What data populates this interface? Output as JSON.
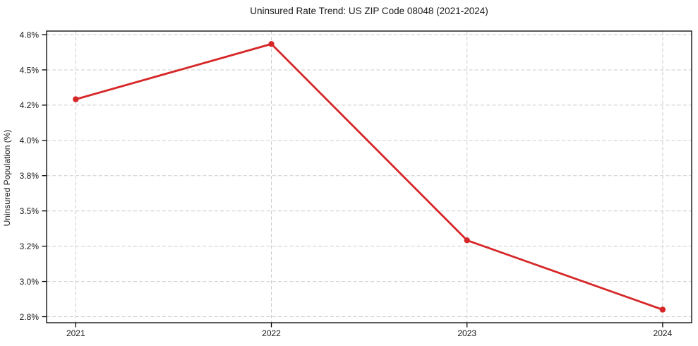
{
  "chart_data": {
    "type": "line",
    "title": "Uninsured Rate Trend: US ZIP Code 08048 (2021-2024)",
    "xlabel": "",
    "ylabel": "Uninsured Population (%)",
    "categories": [
      "2021",
      "2022",
      "2023",
      "2024"
    ],
    "series": [
      {
        "name": "Uninsured Population (%)",
        "values": [
          4.25,
          4.72,
          3.25,
          2.84
        ],
        "color": "#d62728",
        "marker": "circle"
      }
    ],
    "y_tick_labels": [
      "4.8%",
      "4.5%",
      "4.2%",
      "4.0%",
      "3.8%",
      "3.5%",
      "3.2%",
      "3.0%",
      "2.8%"
    ],
    "y_tick_values": [
      4.8,
      4.5,
      4.2,
      4.0,
      3.8,
      3.5,
      3.2,
      3.0,
      2.8
    ],
    "x_tick_labels": [
      "2021",
      "2022",
      "2023",
      "2024"
    ],
    "grid": "dashed-both-axes",
    "legend": "none",
    "colors": {
      "line": "#d62728",
      "marker": "#d62728",
      "grid": "#cbcbcb",
      "spine": "#000000",
      "text": "#1a1a1a"
    }
  }
}
